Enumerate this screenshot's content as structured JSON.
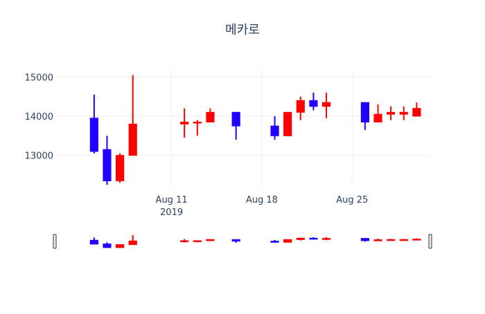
{
  "chart_data": {
    "type": "candlestick",
    "title": "메카로",
    "increasing_color": "#ff0000",
    "decreasing_color": "#2200ff",
    "x_ticks": [
      {
        "date": "2019-08-11",
        "label": "Aug 11",
        "sublabel": "2019"
      },
      {
        "date": "2019-08-18",
        "label": "Aug 18",
        "sublabel": ""
      },
      {
        "date": "2019-08-25",
        "label": "Aug 25",
        "sublabel": ""
      }
    ],
    "y_ticks": [
      {
        "value": 13000,
        "label": "13000"
      },
      {
        "value": 14000,
        "label": "14000"
      },
      {
        "value": 15000,
        "label": "15000"
      }
    ],
    "xlim": [
      "2019-08-02",
      "2019-08-31"
    ],
    "ylim": [
      12200,
      15200
    ],
    "rangeslider": true,
    "candles": [
      {
        "date": "2019-08-05",
        "open": 13950,
        "high": 14550,
        "low": 13050,
        "close": 13100
      },
      {
        "date": "2019-08-06",
        "open": 13150,
        "high": 13500,
        "low": 12250,
        "close": 12350
      },
      {
        "date": "2019-08-07",
        "open": 12350,
        "high": 13050,
        "low": 12300,
        "close": 13000
      },
      {
        "date": "2019-08-08",
        "open": 13000,
        "high": 15050,
        "low": 13000,
        "close": 13800
      },
      {
        "date": "2019-08-12",
        "open": 13800,
        "high": 14200,
        "low": 13450,
        "close": 13850
      },
      {
        "date": "2019-08-13",
        "open": 13850,
        "high": 13900,
        "low": 13500,
        "close": 13850
      },
      {
        "date": "2019-08-14",
        "open": 13850,
        "high": 14200,
        "low": 13850,
        "close": 14100
      },
      {
        "date": "2019-08-16",
        "open": 14100,
        "high": 14100,
        "low": 13400,
        "close": 13750
      },
      {
        "date": "2019-08-19",
        "open": 13750,
        "high": 14000,
        "low": 13400,
        "close": 13500
      },
      {
        "date": "2019-08-20",
        "open": 13500,
        "high": 14100,
        "low": 13500,
        "close": 14100
      },
      {
        "date": "2019-08-21",
        "open": 14100,
        "high": 14500,
        "low": 13900,
        "close": 14400
      },
      {
        "date": "2019-08-22",
        "open": 14400,
        "high": 14600,
        "low": 14150,
        "close": 14250
      },
      {
        "date": "2019-08-23",
        "open": 14250,
        "high": 14600,
        "low": 13950,
        "close": 14350
      },
      {
        "date": "2019-08-26",
        "open": 14350,
        "high": 14350,
        "low": 13650,
        "close": 13850
      },
      {
        "date": "2019-08-27",
        "open": 13850,
        "high": 14300,
        "low": 13850,
        "close": 14050
      },
      {
        "date": "2019-08-28",
        "open": 14050,
        "high": 14250,
        "low": 13900,
        "close": 14100
      },
      {
        "date": "2019-08-29",
        "open": 14050,
        "high": 14250,
        "low": 13900,
        "close": 14100
      },
      {
        "date": "2019-08-30",
        "open": 14000,
        "high": 14350,
        "low": 14000,
        "close": 14200
      }
    ]
  }
}
